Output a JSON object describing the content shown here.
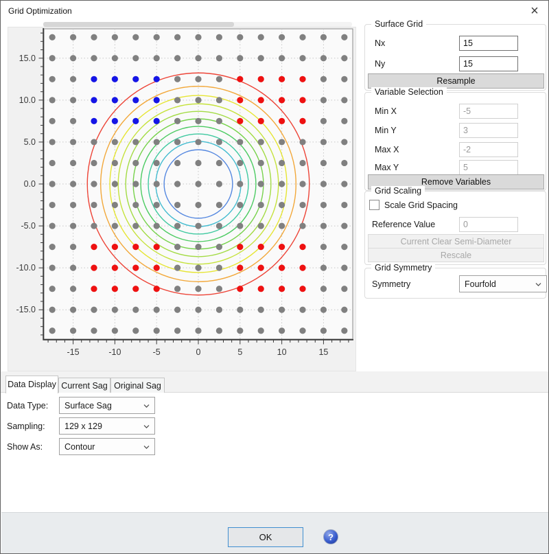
{
  "window": {
    "title": "Grid Optimization",
    "close_glyph": "×"
  },
  "surface_grid": {
    "title": "Surface Grid",
    "nx_label": "Nx",
    "nx_value": "15",
    "ny_label": "Ny",
    "ny_value": "15",
    "resample_label": "Resample"
  },
  "variable_selection": {
    "title": "Variable Selection",
    "fields": [
      {
        "label": "Min X",
        "value": "-5"
      },
      {
        "label": "Min Y",
        "value": "3"
      },
      {
        "label": "Max X",
        "value": "-2"
      },
      {
        "label": "Max Y",
        "value": "5"
      }
    ],
    "remove_label": "Remove Variables"
  },
  "grid_scaling": {
    "title": "Grid Scaling",
    "checkbox_label": "Scale Grid Spacing",
    "checkbox_checked": false,
    "reference_label": "Reference Value",
    "reference_value": "0",
    "current_csd_label": "Current Clear Semi-Diameter",
    "rescale_label": "Rescale"
  },
  "grid_symmetry": {
    "title": "Grid Symmetry",
    "symmetry_label": "Symmetry",
    "symmetry_value": "Fourfold"
  },
  "tabs": [
    {
      "label": "Data Display",
      "active": true
    },
    {
      "label": "Current Sag",
      "active": false
    },
    {
      "label": "Original Sag",
      "active": false
    }
  ],
  "data_display": {
    "rows": [
      {
        "label": "Data Type:",
        "value": "Surface Sag"
      },
      {
        "label": "Sampling:",
        "value": "129 x 129"
      },
      {
        "label": "Show As:",
        "value": "Contour"
      }
    ]
  },
  "footer": {
    "ok_label": "OK",
    "help_glyph": "?"
  },
  "chart_data": {
    "type": "scatter",
    "title": "",
    "xlabel": "",
    "ylabel": "",
    "x_range": [
      -18.5,
      18.5
    ],
    "y_range": [
      -18.5,
      18.5
    ],
    "x_ticks": [
      "-15",
      "-10",
      "-5",
      "0",
      "5",
      "10",
      "15"
    ],
    "y_ticks": [
      "15.0",
      "10.0",
      "5.0",
      "0.0",
      "-5.0",
      "-10.0",
      "-15.0"
    ],
    "grid_on": true,
    "gridline_color": "#c6c6c6",
    "plot_bg": "#fafafa",
    "grid_points": {
      "nx": 15,
      "ny": 15,
      "x_start": -17.5,
      "y_start": -17.5,
      "step": 2.5
    },
    "point_colors": {
      "fixed": "#808080",
      "variable": "#1515e6",
      "mirrored": "#ee1111"
    },
    "variable_points_region": {
      "x_min": -12.5,
      "x_max": -5,
      "y_min": 7.5,
      "y_max": 12.5
    },
    "mirrored_points_regions": [
      {
        "x_min": 5,
        "x_max": 12.5,
        "y_min": 7.5,
        "y_max": 12.5
      },
      {
        "x_min": -12.5,
        "x_max": -5,
        "y_min": -12.5,
        "y_max": -7.5
      },
      {
        "x_min": 5,
        "x_max": 12.5,
        "y_min": -12.5,
        "y_max": -7.5
      }
    ],
    "contour_rings": [
      {
        "radius": 4.1,
        "color": "#5588e0"
      },
      {
        "radius": 5.1,
        "color": "#44bcd0"
      },
      {
        "radius": 6.0,
        "color": "#3fc9a0"
      },
      {
        "radius": 6.9,
        "color": "#4ccb62"
      },
      {
        "radius": 7.8,
        "color": "#76d24b"
      },
      {
        "radius": 8.7,
        "color": "#a2db43"
      },
      {
        "radius": 9.6,
        "color": "#c5e23b"
      },
      {
        "radius": 10.6,
        "color": "#e6e532"
      },
      {
        "radius": 11.7,
        "color": "#f2a83a"
      },
      {
        "radius": 13.3,
        "color": "#ed4437"
      }
    ]
  }
}
